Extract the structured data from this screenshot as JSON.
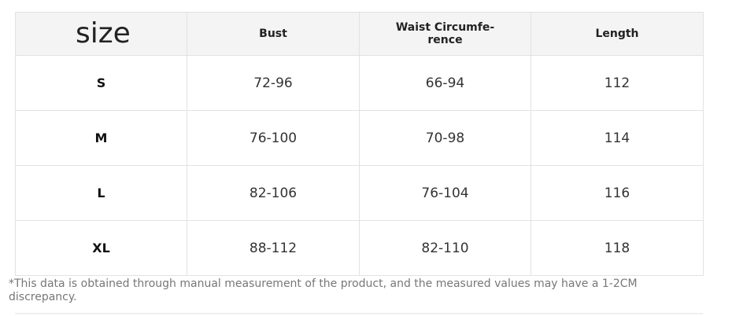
{
  "table": {
    "header": [
      "size",
      "Bust",
      "Waist Circumfe-\nrence",
      "Length"
    ],
    "rows": [
      [
        "S",
        "72-96",
        "66-94",
        "112"
      ],
      [
        "M",
        "76-100",
        "70-98",
        "114"
      ],
      [
        "L",
        "82-106",
        "76-104",
        "116"
      ],
      [
        "XL",
        "88-112",
        "82-110",
        "118"
      ]
    ]
  },
  "footnote": "*This data is obtained through manual measurement of the product, and the measured values may have a 1-2CM discrepancy."
}
